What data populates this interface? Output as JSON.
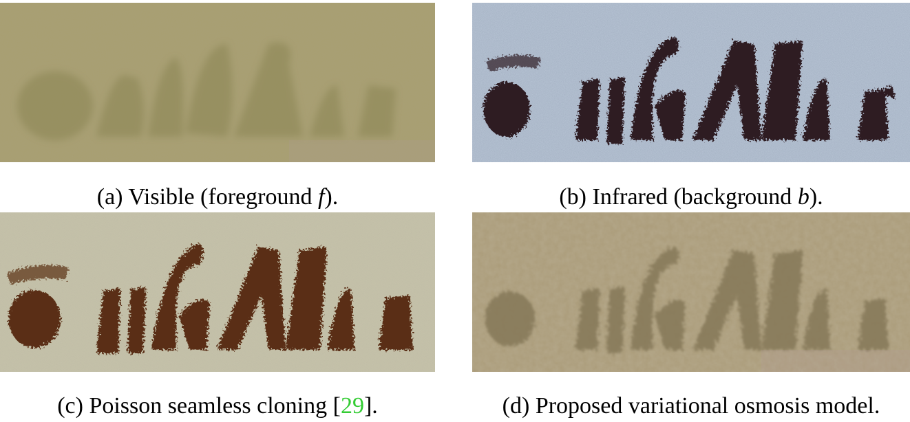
{
  "figure": {
    "panels": [
      {
        "id": "a",
        "caption_prefix": "(a) Visible (foreground ",
        "caption_symbol": "f",
        "caption_suffix": ").",
        "background_color": "#a89e70",
        "ink_color": "#8a8452"
      },
      {
        "id": "b",
        "caption_prefix": "(b) Infrared (background ",
        "caption_symbol": "b",
        "caption_suffix": ").",
        "background_color": "#b9c6d6",
        "ink_color": "#2e1a24"
      },
      {
        "id": "c",
        "caption_prefix": "(c) Poisson seamless cloning [",
        "caption_citation": "29",
        "caption_suffix": "].",
        "background_color": "#c7c5ad",
        "ink_color": "#5a2e12",
        "citation_color": "#33cc33"
      },
      {
        "id": "d",
        "caption_text": "(d) Proposed variational osmosis model.",
        "background_color": "#ab9c7a",
        "ink_color": "#857858"
      }
    ]
  }
}
